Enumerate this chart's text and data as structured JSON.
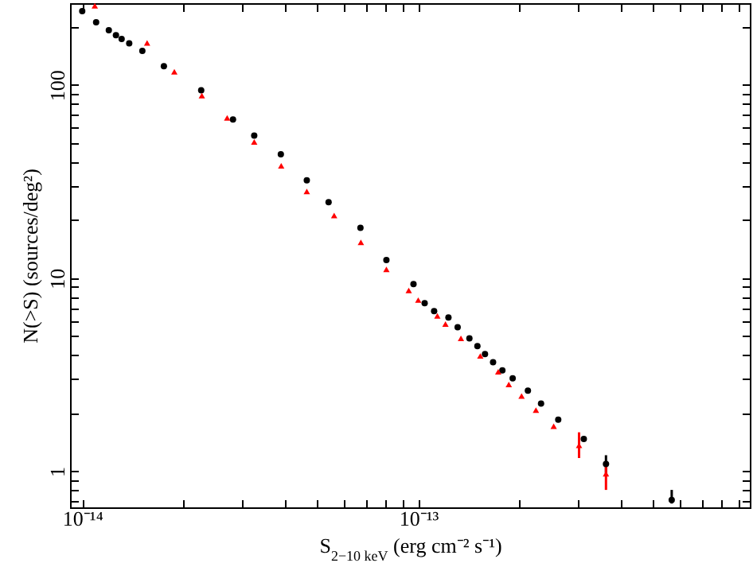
{
  "chart_data": {
    "type": "scatter",
    "xlabel": "S$_{2−10 keV}$ (erg cm⁻² s⁻¹)",
    "ylabel": "N(>S) (sources/deg²)",
    "log": "xy",
    "xlim": [
      9.2e-15,
      9.7e-13
    ],
    "ylim": [
      0.65,
      265
    ],
    "xticks": [
      {
        "value": 1e-14,
        "label": "10⁻¹⁴"
      },
      {
        "value": 2e-14,
        "label": null
      },
      {
        "value": 3e-14,
        "label": null
      },
      {
        "value": 4e-14,
        "label": null
      },
      {
        "value": 5e-14,
        "label": null
      },
      {
        "value": 6e-14,
        "label": null
      },
      {
        "value": 7e-14,
        "label": null
      },
      {
        "value": 8e-14,
        "label": null
      },
      {
        "value": 9e-14,
        "label": null
      },
      {
        "value": 1e-13,
        "label": "10⁻¹³"
      },
      {
        "value": 2e-13,
        "label": null
      },
      {
        "value": 3e-13,
        "label": null
      },
      {
        "value": 4e-13,
        "label": null
      },
      {
        "value": 5e-13,
        "label": null
      },
      {
        "value": 6e-13,
        "label": null
      },
      {
        "value": 7e-13,
        "label": null
      },
      {
        "value": 8e-13,
        "label": null
      },
      {
        "value": 9e-13,
        "label": null
      }
    ],
    "yticks": [
      {
        "value": 0.7,
        "label": null
      },
      {
        "value": 0.8,
        "label": null
      },
      {
        "value": 0.9,
        "label": null
      },
      1,
      {
        "value": 2,
        "label": null
      },
      {
        "value": 3,
        "label": null
      },
      {
        "value": 4,
        "label": null
      },
      {
        "value": 5,
        "label": null
      },
      {
        "value": 6,
        "label": null
      },
      {
        "value": 7,
        "label": null
      },
      {
        "value": 8,
        "label": null
      },
      {
        "value": 9,
        "label": null
      },
      10,
      {
        "value": 20,
        "label": null
      },
      {
        "value": 30,
        "label": null
      },
      {
        "value": 40,
        "label": null
      },
      {
        "value": 50,
        "label": null
      },
      {
        "value": 60,
        "label": null
      },
      {
        "value": 70,
        "label": null
      },
      {
        "value": 80,
        "label": null
      },
      {
        "value": 90,
        "label": null
      },
      100,
      {
        "value": 200,
        "label": null
      }
    ],
    "series": [
      {
        "color": "#000000",
        "marker": "circle",
        "x": [
          1e-14,
          1.1e-14,
          1.2e-14,
          1.26e-14,
          1.31e-14,
          1.38e-14,
          1.51e-14,
          1.75e-14,
          2.26e-14,
          2.81e-14,
          3.25e-14,
          3.9e-14,
          4.66e-14,
          5.41e-14,
          6.73e-14,
          8.04e-14,
          9.68e-14,
          1.045e-13,
          1.115e-13,
          1.23e-13,
          1.31e-13,
          1.42e-13,
          1.5e-13,
          1.58e-13,
          1.67e-13,
          1.78e-13,
          1.91e-13,
          2.12e-13,
          2.32e-13,
          2.61e-13,
          3.11e-13,
          3.62e-13,
          5.68e-13
        ],
        "values": [
          241,
          211,
          192,
          181,
          173,
          164,
          150,
          125,
          93.8,
          66.2,
          54.7,
          43.8,
          32.1,
          24.7,
          18.2,
          12.4,
          9.31,
          7.42,
          6.75,
          6.25,
          5.57,
          4.87,
          4.44,
          4.04,
          3.67,
          3.33,
          3.03,
          2.61,
          2.24,
          1.85,
          1.47,
          1.09,
          0.71
        ],
        "errors": [
          null,
          null,
          null,
          null,
          null,
          null,
          null,
          null,
          null,
          null,
          null,
          null,
          null,
          null,
          null,
          null,
          null,
          null,
          null,
          null,
          null,
          null,
          null,
          null,
          null,
          null,
          null,
          null,
          null,
          null,
          null,
          [
            0.98,
            1.21
          ],
          [
            0.68,
            0.8
          ]
        ]
      },
      {
        "color": "#ff0000",
        "marker": "triangle",
        "x": [
          1.09e-14,
          1.56e-14,
          1.88e-14,
          2.27e-14,
          2.7e-14,
          3.25e-14,
          3.91e-14,
          4.66e-14,
          5.62e-14,
          6.75e-14,
          8.04e-14,
          9.37e-14,
          1e-13,
          1.14e-13,
          1.205e-13,
          1.34e-13,
          1.53e-13,
          1.73e-13,
          1.86e-13,
          2.03e-13,
          2.24e-13,
          2.53e-13,
          3.01e-13,
          3.62e-13
        ],
        "values": [
          257,
          165,
          117,
          88.1,
          67.5,
          50.7,
          38.1,
          28.1,
          21.1,
          15.3,
          11.1,
          8.63,
          7.69,
          6.37,
          5.78,
          4.87,
          3.95,
          3.27,
          2.81,
          2.45,
          2.07,
          1.71,
          1.36,
          0.97
        ],
        "errors": [
          null,
          null,
          null,
          null,
          null,
          null,
          null,
          null,
          null,
          null,
          null,
          null,
          null,
          null,
          null,
          null,
          null,
          null,
          null,
          null,
          null,
          null,
          [
            1.17,
            1.59
          ],
          [
            0.8,
            1.12
          ]
        ]
      }
    ]
  }
}
